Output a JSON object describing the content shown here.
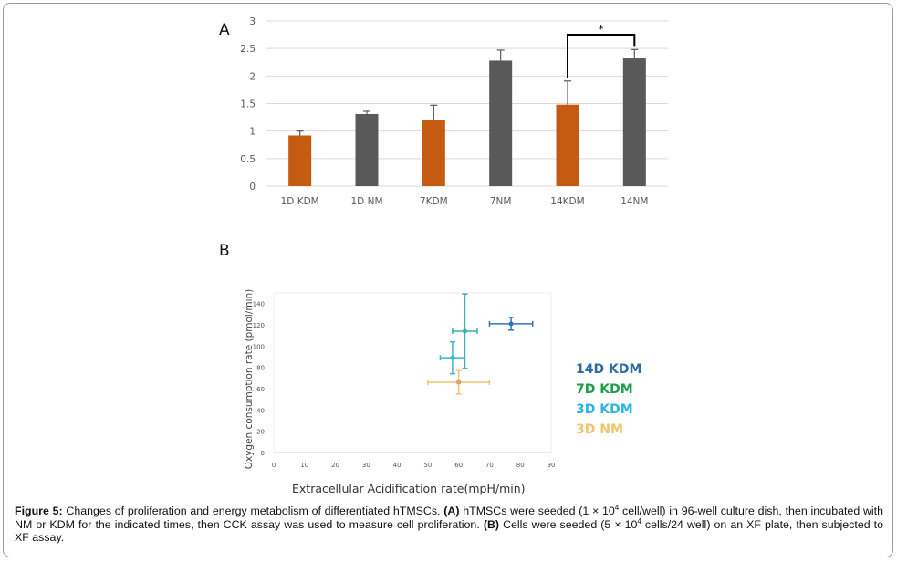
{
  "figure": {
    "panel_a_label": "A",
    "panel_b_label": "B",
    "caption": {
      "title": "Figure 5:",
      "intro": " Changes of proliferation and energy metabolism of differentiated hTMSCs. ",
      "a_tag": "(A)",
      "a_text_1": " hTMSCs were seeded (1 × 10",
      "a_sup": "4",
      "a_text_2": " cell/well) in 96-well culture dish, then incubated with NM or KDM for the indicated times, then CCK assay was used to measure cell proliferation. ",
      "b_tag": "(B)",
      "b_text_1": " Cells were seeded (5 × 10",
      "b_sup": "4",
      "b_text_2": " cells/24 well) on an XF plate, then subjected to XF assay."
    }
  },
  "colors": {
    "kdm_bar": "#C55A11",
    "nm_bar": "#595959",
    "grid": "#D9D9D9",
    "d14_kdm": "#2E75B6",
    "d7_kdm": "#1E9E5A",
    "d3_kdm": "#2BB5D6",
    "d3_nm": "#F2C46D",
    "legend_14d": "#2E6DA4",
    "legend_7d": "#1E9E4A",
    "legend_3d_kdm": "#2BB5E0",
    "legend_3d_nm": "#F2C46D"
  },
  "chart_data": [
    {
      "type": "bar",
      "title": "",
      "xlabel": "",
      "ylabel": "",
      "categories": [
        "1D KDM",
        "1D NM",
        "7KDM",
        "7NM",
        "14KDM",
        "14NM"
      ],
      "values": [
        0.92,
        1.31,
        1.2,
        2.28,
        1.48,
        2.32
      ],
      "error_upper": [
        0.08,
        0.05,
        0.27,
        0.19,
        0.43,
        0.16
      ],
      "bar_groups": [
        "KDM",
        "NM",
        "KDM",
        "NM",
        "KDM",
        "NM"
      ],
      "ylim": [
        0,
        3
      ],
      "yticks": [
        "0",
        "0.5",
        "1",
        "1.5",
        "2",
        "2.5",
        "3"
      ],
      "ytick_values": [
        0,
        0.5,
        1,
        1.5,
        2,
        2.5,
        3
      ],
      "grid": true,
      "significance": {
        "from": "14KDM",
        "to": "14NM",
        "label": "*"
      }
    },
    {
      "type": "scatter",
      "title": "",
      "xlabel": "Extracellular Acidification rate(mpH/min)",
      "ylabel": "Oxygen consumption rate (pmol/min)",
      "xlim": [
        0,
        90
      ],
      "ylim": [
        0,
        150
      ],
      "xticks": [
        "0",
        "10",
        "20",
        "30",
        "40",
        "50",
        "60",
        "70",
        "80",
        "90"
      ],
      "xtick_values": [
        0,
        10,
        20,
        30,
        40,
        50,
        60,
        70,
        80,
        90
      ],
      "yticks": [
        "0",
        "20",
        "40",
        "60",
        "80",
        "100",
        "120",
        "140"
      ],
      "ytick_values": [
        0,
        20,
        40,
        60,
        80,
        100,
        120,
        140
      ],
      "grid": false,
      "legend_position": "right",
      "series": [
        {
          "name": "14D KDM",
          "x": 77,
          "y": 121,
          "xerr": 7,
          "yerr": 6
        },
        {
          "name": "7D KDM",
          "x": 62,
          "y": 114,
          "xerr": 4,
          "yerr": 35
        },
        {
          "name": "3D KDM",
          "x": 58,
          "y": 89,
          "xerr": 4,
          "yerr": 15
        },
        {
          "name": "3D NM",
          "x": 60,
          "y": 66,
          "xerr": 10,
          "yerr": 11
        }
      ]
    }
  ]
}
